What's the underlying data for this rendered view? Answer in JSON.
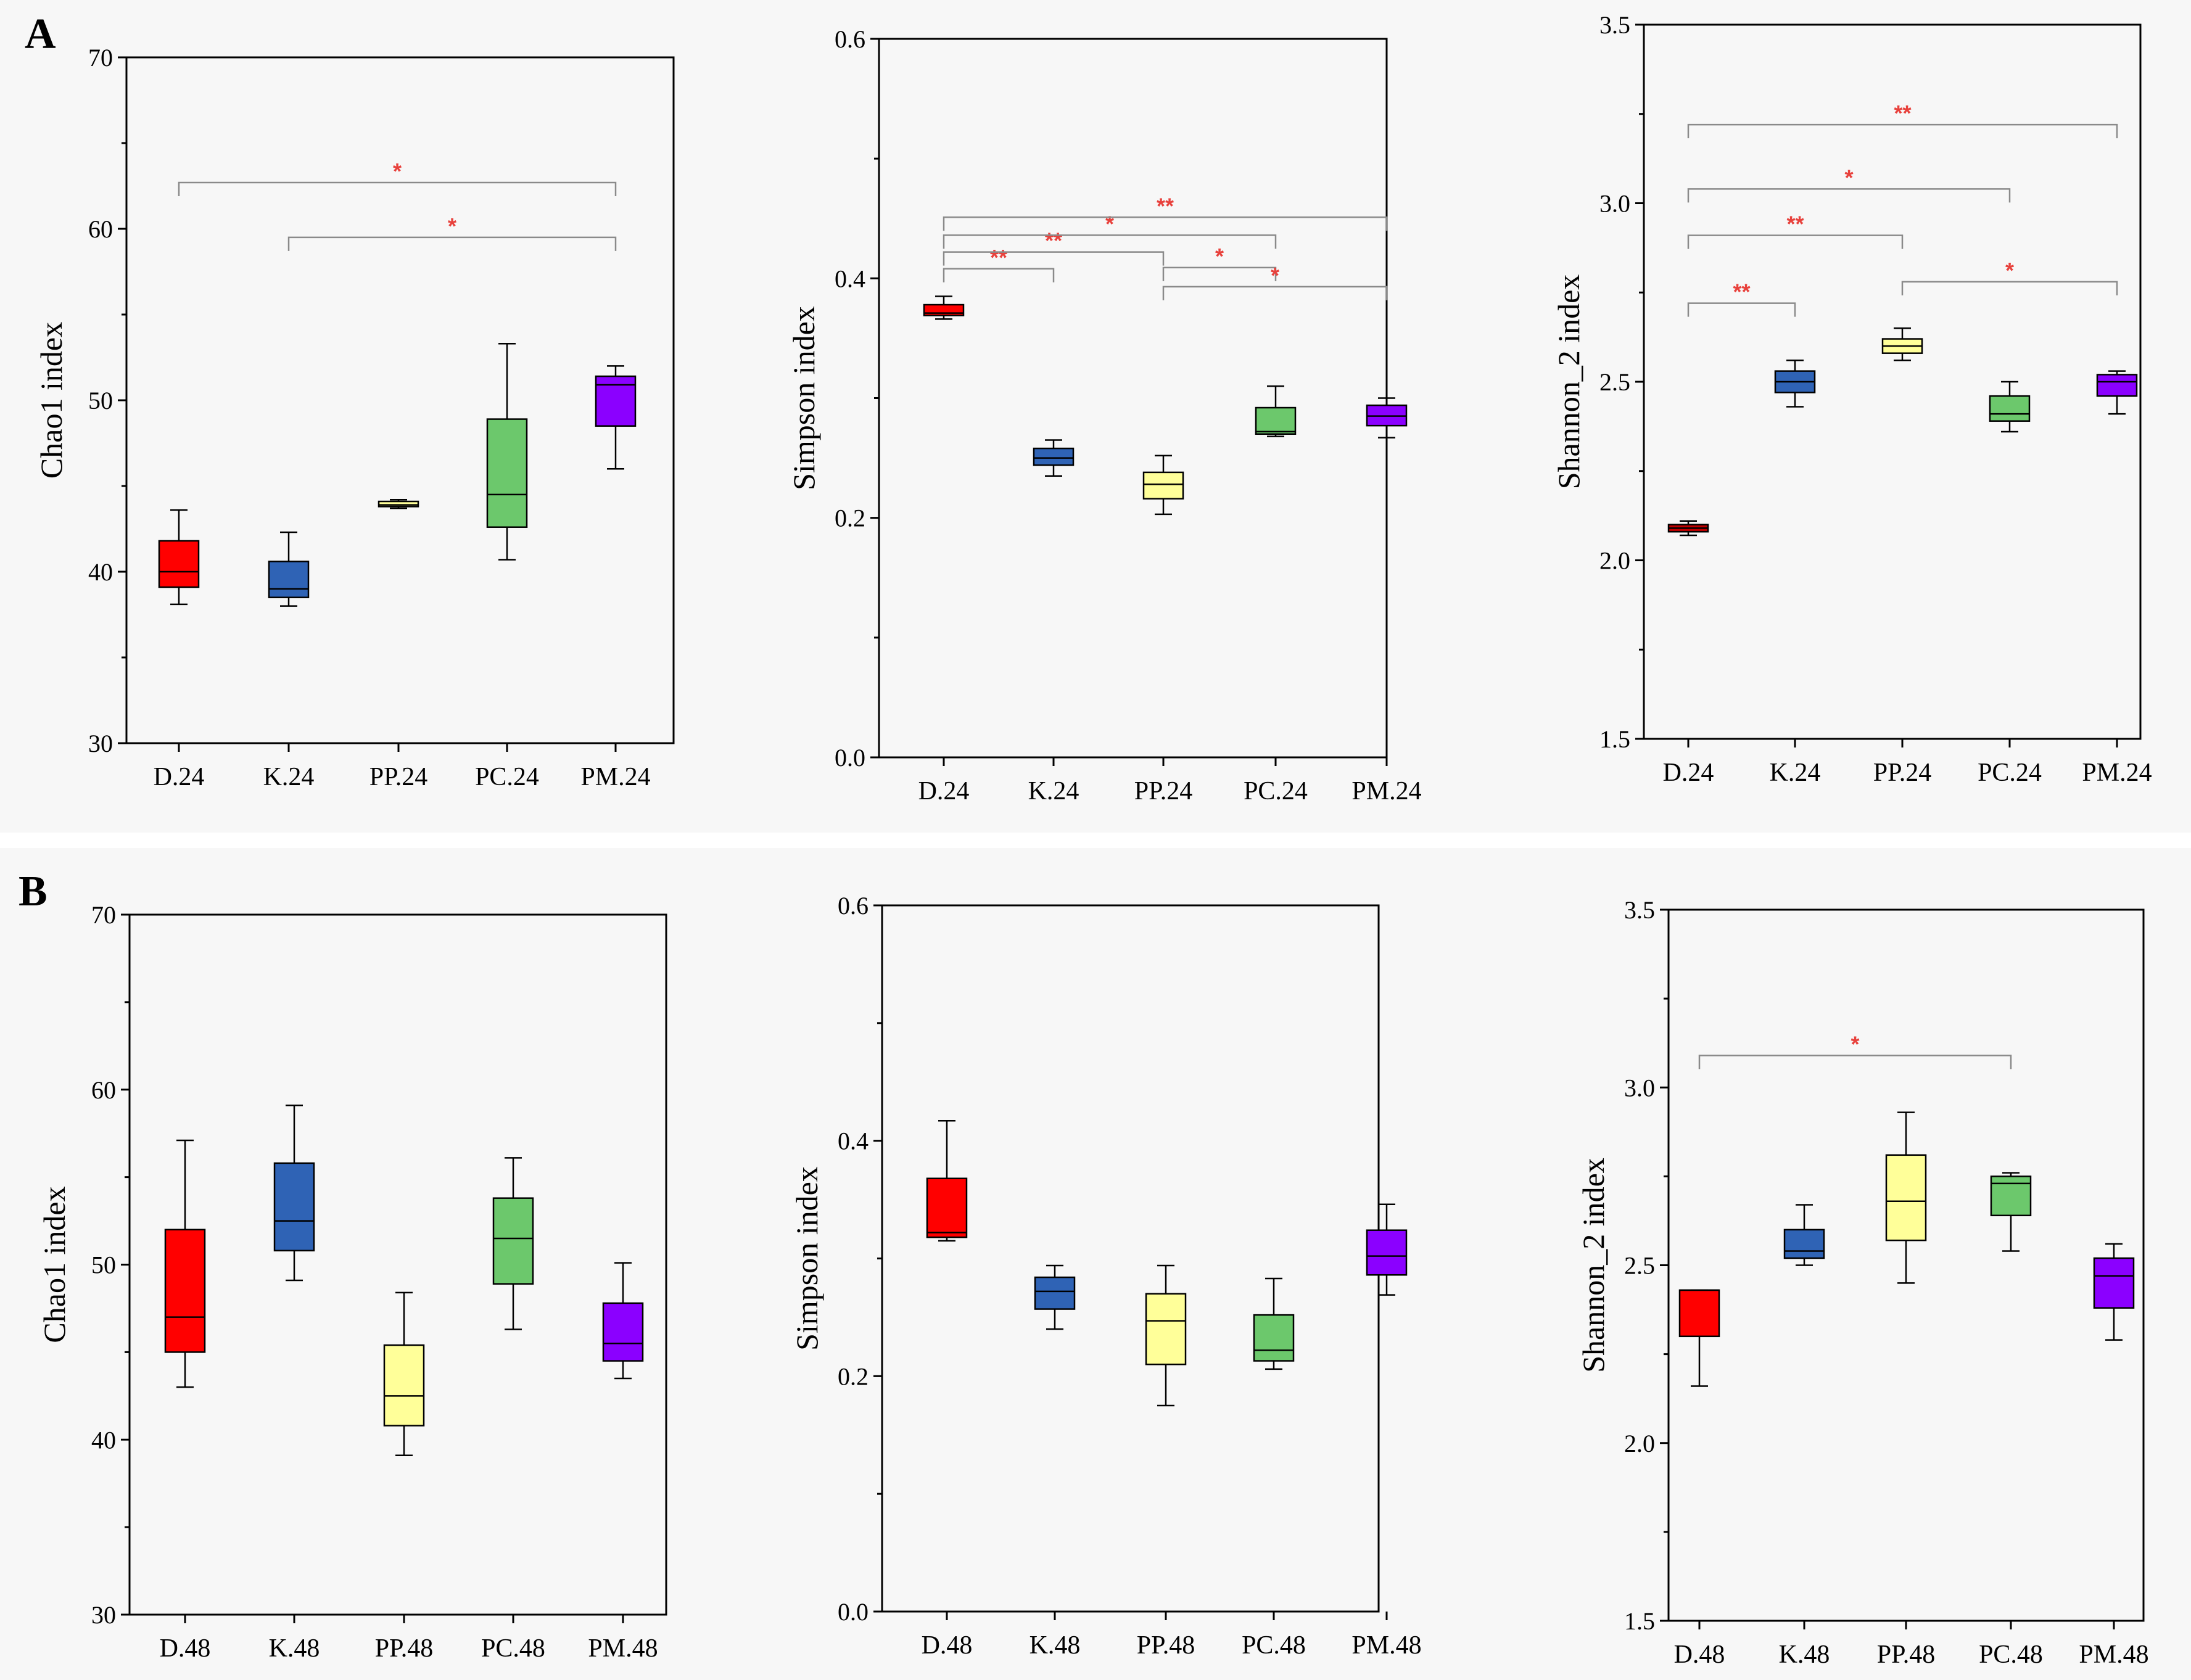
{
  "figure": {
    "panels": [
      {
        "letter": "A"
      },
      {
        "letter": "B"
      }
    ]
  },
  "chart_data": [
    {
      "type": "box",
      "panel": "A",
      "ylabel": "Chao1 index",
      "ylim": [
        30,
        70
      ],
      "yticks": [
        30,
        40,
        50,
        60,
        70
      ],
      "categories": [
        "D.24",
        "K.24",
        "PP.24",
        "PC.24",
        "PM.24"
      ],
      "colors": [
        "#ff0000",
        "#2f63b5",
        "#ffff99",
        "#6cc86c",
        "#8b00ff"
      ],
      "boxes": [
        {
          "min": 38.1,
          "q1": 39.1,
          "median": 40.0,
          "q3": 41.8,
          "max": 43.6
        },
        {
          "min": 38.0,
          "q1": 38.5,
          "median": 39.0,
          "q3": 40.6,
          "max": 42.3
        },
        {
          "min": 43.7,
          "q1": 43.8,
          "median": 43.9,
          "q3": 44.1,
          "max": 44.2
        },
        {
          "min": 40.7,
          "q1": 42.6,
          "median": 44.5,
          "q3": 48.9,
          "max": 53.3
        },
        {
          "min": 46.0,
          "q1": 48.5,
          "median": 50.9,
          "q3": 51.4,
          "max": 52.0
        }
      ],
      "annotations": [
        {
          "from": 0,
          "to": 4,
          "y": 62.7,
          "label": "*"
        },
        {
          "from": 1,
          "to": 4,
          "y": 59.5,
          "label": "*"
        }
      ]
    },
    {
      "type": "box",
      "panel": "A",
      "ylabel": "Simpson index",
      "ylim": [
        0.0,
        0.6
      ],
      "yticks": [
        "0.0",
        "0.2",
        "0.4",
        "0.6"
      ],
      "categories": [
        "D.24",
        "K.24",
        "PP.24",
        "PC.24",
        "PM.24"
      ],
      "colors": [
        "#ff0000",
        "#2f63b5",
        "#ffff99",
        "#6cc86c",
        "#8b00ff"
      ],
      "boxes": [
        {
          "min": 0.366,
          "q1": 0.369,
          "median": 0.371,
          "q3": 0.378,
          "max": 0.385
        },
        {
          "min": 0.235,
          "q1": 0.244,
          "median": 0.25,
          "q3": 0.258,
          "max": 0.265
        },
        {
          "min": 0.203,
          "q1": 0.216,
          "median": 0.228,
          "q3": 0.238,
          "max": 0.252
        },
        {
          "min": 0.268,
          "q1": 0.27,
          "median": 0.272,
          "q3": 0.292,
          "max": 0.31
        },
        {
          "min": 0.267,
          "q1": 0.277,
          "median": 0.285,
          "q3": 0.294,
          "max": 0.3
        }
      ],
      "annotations": [
        {
          "from": 0,
          "to": 1,
          "y": 0.408,
          "label": "**"
        },
        {
          "from": 0,
          "to": 2,
          "y": 0.422,
          "label": "**"
        },
        {
          "from": 0,
          "to": 3,
          "y": 0.436,
          "label": "*"
        },
        {
          "from": 0,
          "to": 4,
          "y": 0.451,
          "label": "**"
        },
        {
          "from": 2,
          "to": 3,
          "y": 0.409,
          "label": "*"
        },
        {
          "from": 2,
          "to": 4,
          "y": 0.393,
          "label": "*"
        }
      ]
    },
    {
      "type": "box",
      "panel": "A",
      "ylabel": "Shannon_2 index",
      "ylim": [
        1.5,
        3.5
      ],
      "yticks": [
        "1.5",
        "2.0",
        "2.5",
        "3.0",
        "3.5"
      ],
      "categories": [
        "D.24",
        "K.24",
        "PP.24",
        "PC.24",
        "PM.24"
      ],
      "colors": [
        "#c00000",
        "#2f63b5",
        "#ffff99",
        "#6cc86c",
        "#8b00ff"
      ],
      "boxes": [
        {
          "min": 2.07,
          "q1": 2.08,
          "median": 2.09,
          "q3": 2.1,
          "max": 2.11
        },
        {
          "min": 2.43,
          "q1": 2.47,
          "median": 2.5,
          "q3": 2.53,
          "max": 2.56
        },
        {
          "min": 2.56,
          "q1": 2.58,
          "median": 2.6,
          "q3": 2.62,
          "max": 2.65
        },
        {
          "min": 2.36,
          "q1": 2.39,
          "median": 2.41,
          "q3": 2.46,
          "max": 2.5
        },
        {
          "min": 2.41,
          "q1": 2.46,
          "median": 2.5,
          "q3": 2.52,
          "max": 2.53
        }
      ],
      "annotations": [
        {
          "from": 0,
          "to": 1,
          "y": 2.72,
          "label": "**"
        },
        {
          "from": 0,
          "to": 2,
          "y": 2.91,
          "label": "**"
        },
        {
          "from": 0,
          "to": 3,
          "y": 3.04,
          "label": "*"
        },
        {
          "from": 0,
          "to": 4,
          "y": 3.22,
          "label": "**"
        },
        {
          "from": 2,
          "to": 4,
          "y": 2.78,
          "label": "*"
        }
      ]
    },
    {
      "type": "box",
      "panel": "B",
      "ylabel": "Chao1 index",
      "ylim": [
        30,
        70
      ],
      "yticks": [
        30,
        40,
        50,
        60,
        70
      ],
      "categories": [
        "D.48",
        "K.48",
        "PP.48",
        "PC.48",
        "PM.48"
      ],
      "colors": [
        "#ff0000",
        "#2f63b5",
        "#ffff99",
        "#6cc86c",
        "#8b00ff"
      ],
      "boxes": [
        {
          "min": 43.0,
          "q1": 45.0,
          "median": 47.0,
          "q3": 52.0,
          "max": 57.1
        },
        {
          "min": 49.1,
          "q1": 50.8,
          "median": 52.5,
          "q3": 55.8,
          "max": 59.1
        },
        {
          "min": 39.1,
          "q1": 40.8,
          "median": 42.5,
          "q3": 45.4,
          "max": 48.4
        },
        {
          "min": 46.3,
          "q1": 48.9,
          "median": 51.5,
          "q3": 53.8,
          "max": 56.1
        },
        {
          "min": 43.5,
          "q1": 44.5,
          "median": 45.5,
          "q3": 47.8,
          "max": 50.1
        }
      ],
      "annotations": []
    },
    {
      "type": "box",
      "panel": "B",
      "ylabel": "Simpson index",
      "ylim": [
        0.0,
        0.6
      ],
      "yticks": [
        "0.0",
        "0.2",
        "0.4",
        "0.6"
      ],
      "categories": [
        "D.48",
        "K.48",
        "PP.48",
        "PC.48",
        "PM.48"
      ],
      "colors": [
        "#ff0000",
        "#2f63b5",
        "#ffff99",
        "#6cc86c",
        "#8b00ff"
      ],
      "boxes": [
        {
          "min": 0.315,
          "q1": 0.318,
          "median": 0.322,
          "q3": 0.368,
          "max": 0.417
        },
        {
          "min": 0.24,
          "q1": 0.257,
          "median": 0.272,
          "q3": 0.284,
          "max": 0.294
        },
        {
          "min": 0.175,
          "q1": 0.21,
          "median": 0.247,
          "q3": 0.27,
          "max": 0.294
        },
        {
          "min": 0.206,
          "q1": 0.213,
          "median": 0.222,
          "q3": 0.252,
          "max": 0.283
        },
        {
          "min": 0.269,
          "q1": 0.286,
          "median": 0.302,
          "q3": 0.324,
          "max": 0.346
        }
      ],
      "annotations": []
    },
    {
      "type": "box",
      "panel": "B",
      "ylabel": "Shannon_2 index",
      "ylim": [
        1.5,
        3.5
      ],
      "yticks": [
        "1.5",
        "2.0",
        "2.5",
        "3.0",
        "3.5"
      ],
      "categories": [
        "D.48",
        "K.48",
        "PP.48",
        "PC.48",
        "PM.48"
      ],
      "colors": [
        "#ff0000",
        "#2f63b5",
        "#ffff99",
        "#6cc86c",
        "#8b00ff"
      ],
      "boxes": [
        {
          "min": 2.16,
          "q1": 2.3,
          "median": 2.43,
          "q3": 2.43,
          "max": 2.43
        },
        {
          "min": 2.5,
          "q1": 2.52,
          "median": 2.54,
          "q3": 2.6,
          "max": 2.67
        },
        {
          "min": 2.45,
          "q1": 2.57,
          "median": 2.68,
          "q3": 2.81,
          "max": 2.93
        },
        {
          "min": 2.54,
          "q1": 2.64,
          "median": 2.73,
          "q3": 2.75,
          "max": 2.76
        },
        {
          "min": 2.29,
          "q1": 2.38,
          "median": 2.47,
          "q3": 2.52,
          "max": 2.56
        }
      ],
      "annotations": [
        {
          "from": 0,
          "to": 3,
          "y": 3.09,
          "label": "*"
        }
      ]
    }
  ]
}
